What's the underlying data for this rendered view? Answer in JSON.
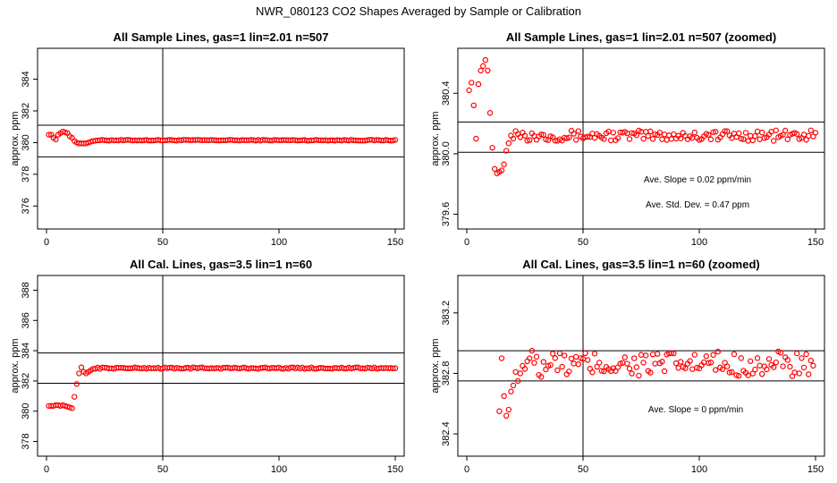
{
  "page": {
    "title": "NWR_080123  CO2 Shapes Averaged by Sample or Calibration"
  },
  "colors": {
    "points": "#ff0000",
    "lines": "#000000"
  },
  "chart_data": [
    {
      "type": "scatter",
      "title": "All Sample Lines, gas=1 lin=2.01 n=507",
      "ylabel": "approx. ppm",
      "xlabel": "",
      "xlim": [
        0,
        150
      ],
      "ylim": [
        375,
        385.5
      ],
      "xticks": [
        0,
        50,
        100,
        150
      ],
      "yticks": [
        376,
        378,
        380,
        382,
        384
      ],
      "hlines": [
        379.1,
        381.1
      ],
      "vline": 50,
      "annotations": [],
      "series": [
        {
          "marker": "open-circle",
          "x_start": 1,
          "x_end": 150,
          "x_step": 1,
          "y_head": [
            380.5,
            380.5,
            380.3,
            380.2,
            380.5,
            380.6,
            380.7,
            380.65,
            380.6,
            380.4,
            380.3,
            380.1,
            380.0,
            379.95,
            379.95,
            379.95,
            379.95,
            380.0,
            380.05,
            380.1
          ],
          "y_tail": 380.15,
          "jitter": 0.03
        }
      ]
    },
    {
      "type": "scatter",
      "title": "All Sample Lines, gas=1 lin=2.01 n=507 (zoomed)",
      "ylabel": "approx. ppm",
      "xlabel": "",
      "xlim": [
        0,
        150
      ],
      "ylim": [
        379.55,
        380.65
      ],
      "xticks": [
        0,
        50,
        100,
        150
      ],
      "yticks": [
        379.6,
        380.0,
        380.4
      ],
      "hlines": [
        380.01,
        380.21
      ],
      "vline": 50,
      "annotations": [
        "Ave. Slope =  0.02  ppm/min",
        "Ave. Std. Dev. =  0.47  ppm"
      ],
      "series": [
        {
          "marker": "open-circle",
          "x_start": 1,
          "x_end": 150,
          "x_step": 1,
          "y_head": [
            380.42,
            380.47,
            380.32,
            380.1,
            380.46,
            380.55,
            380.58,
            380.62,
            380.55,
            380.27,
            380.04,
            379.9,
            379.87,
            379.88,
            379.89,
            379.93,
            380.02,
            380.07,
            380.12,
            380.1,
            380.15,
            380.13,
            380.11,
            380.14,
            380.12
          ],
          "y_tail": 380.12,
          "jitter": 0.035
        }
      ]
    },
    {
      "type": "scatter",
      "title": "All Cal. Lines, gas=3.5 lin=1 n=60",
      "ylabel": "approx. ppm",
      "xlabel": "",
      "xlim": [
        0,
        150
      ],
      "ylim": [
        377.5,
        388.5
      ],
      "xticks": [
        0,
        50,
        100,
        150
      ],
      "yticks": [
        378,
        380,
        382,
        384,
        386,
        388
      ],
      "hlines": [
        381.85,
        383.85
      ],
      "vline": 50,
      "annotations": [],
      "series": [
        {
          "marker": "open-circle",
          "x_start": 1,
          "x_end": 150,
          "x_step": 1,
          "y_head": [
            380.35,
            380.35,
            380.35,
            380.4,
            380.4,
            380.35,
            380.4,
            380.35,
            380.3,
            380.25,
            380.2,
            380.95,
            381.8,
            382.5,
            382.9,
            382.6,
            382.5,
            382.6,
            382.7,
            382.8
          ],
          "y_tail": 382.85,
          "jitter": 0.05
        }
      ]
    },
    {
      "type": "scatter",
      "title": "All Cal. Lines, gas=3.5 lin=1 n=60 (zoomed)",
      "ylabel": "approx. ppm",
      "xlabel": "",
      "xlim": [
        0,
        150
      ],
      "ylim": [
        382.3,
        383.4
      ],
      "xticks": [
        0,
        50,
        100,
        150
      ],
      "yticks": [
        382.4,
        382.8,
        383.2
      ],
      "hlines": [
        382.75,
        382.95
      ],
      "vline": 50,
      "annotations": [
        "Ave. Slope =  0  ppm/min"
      ],
      "series": [
        {
          "marker": "open-circle",
          "x_start": 14,
          "x_end": 149,
          "x_step": 1,
          "y_head": [
            382.55,
            382.9,
            382.65,
            382.52,
            382.56,
            382.68,
            382.72,
            382.81,
            382.75,
            382.8,
            382.85,
            382.83,
            382.88,
            382.9,
            382.95,
            382.87,
            382.91,
            382.79
          ],
          "y_tail": 382.86,
          "jitter": 0.085
        }
      ]
    }
  ]
}
